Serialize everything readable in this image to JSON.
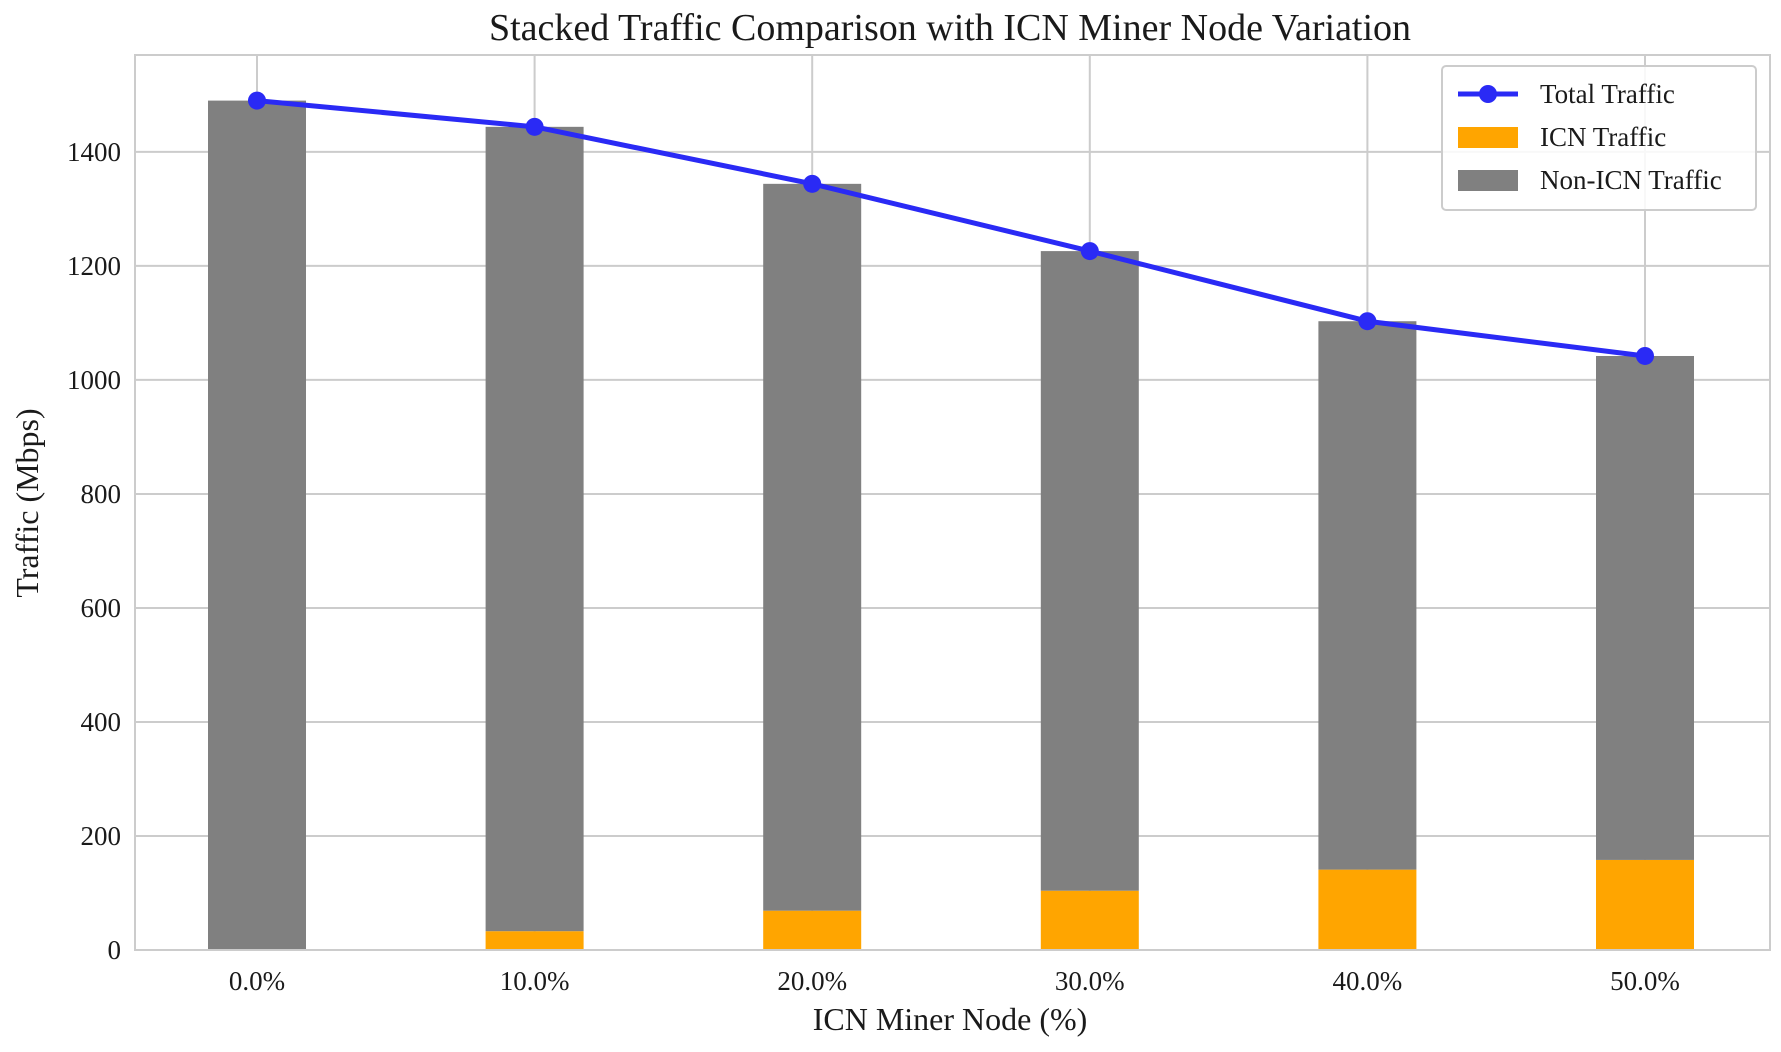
{
  "chart_data": {
    "type": "bar",
    "stacked": true,
    "title": "Stacked Traffic Comparison with ICN Miner Node Variation",
    "xlabel": "ICN Miner Node (%)",
    "ylabel": "Traffic (Mbps)",
    "categories": [
      "0.0%",
      "10.0%",
      "20.0%",
      "30.0%",
      "40.0%",
      "50.0%"
    ],
    "ylim": [
      0,
      1570
    ],
    "yticks": [
      0,
      200,
      400,
      600,
      800,
      1000,
      1200,
      1400
    ],
    "grid": true,
    "legend_position": "top-right",
    "series": [
      {
        "name": "ICN Traffic",
        "kind": "bar",
        "color": "#ffa500",
        "values": [
          0,
          33,
          69,
          104,
          141,
          158
        ]
      },
      {
        "name": "Non-ICN Traffic",
        "kind": "bar",
        "color": "#808080",
        "values": [
          1490,
          1411,
          1275,
          1122,
          962,
          884
        ]
      },
      {
        "name": "Total Traffic",
        "kind": "line",
        "color": "#2a2af5",
        "values": [
          1490,
          1444,
          1344,
          1226,
          1103,
          1042
        ]
      }
    ],
    "legend": [
      "Total Traffic",
      "ICN Traffic",
      "Non-ICN Traffic"
    ]
  }
}
